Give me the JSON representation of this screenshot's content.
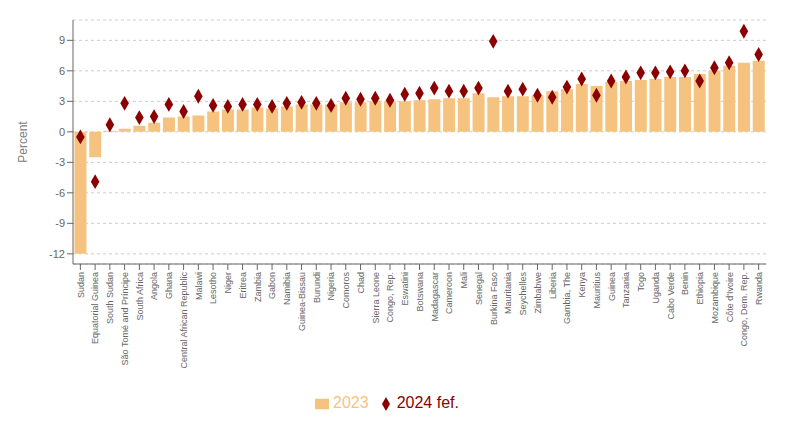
{
  "chart_data": {
    "type": "bar",
    "categories": [
      "Sudan",
      "Equatorial Guinea",
      "South Sudan",
      "São Tomé and Príncipe",
      "South Africa",
      "Angola",
      "Ghana",
      "Central African Republic",
      "Malawi",
      "Lesotho",
      "Niger",
      "Eritrea",
      "Zambia",
      "Gabon",
      "Namibia",
      "Guinea-Bissau",
      "Burundi",
      "Nigeria",
      "Comoros",
      "Chad",
      "Sierra Leone",
      "Congo, Rep.",
      "Eswatini",
      "Botswana",
      "Madagascar",
      "Cameroon",
      "Mali",
      "Senegal",
      "Burkina Faso",
      "Mauritania",
      "Seychelles",
      "Zimbabwe",
      "Liberia",
      "Gambia, The",
      "Kenya",
      "Mauritius",
      "Guinea",
      "Tanzania",
      "Togo",
      "Uganda",
      "Cabo Verde",
      "Benin",
      "Ethiopia",
      "Mozambique",
      "Côte d'Ivoire",
      "Congo, Dem. Rep.",
      "Rwanda"
    ],
    "series": [
      {
        "name": "2023",
        "type": "bar",
        "color": "#F5C37F",
        "values": [
          -12.0,
          -2.5,
          0.1,
          0.3,
          0.6,
          0.9,
          1.4,
          1.5,
          1.6,
          2.0,
          2.2,
          2.2,
          2.4,
          2.3,
          2.5,
          2.7,
          2.7,
          2.7,
          2.9,
          2.9,
          3.0,
          3.0,
          3.0,
          3.1,
          3.2,
          3.3,
          3.3,
          3.8,
          3.4,
          3.5,
          3.5,
          3.6,
          4.0,
          4.2,
          4.7,
          4.5,
          4.9,
          5.0,
          5.1,
          5.2,
          5.4,
          5.4,
          5.7,
          6.0,
          6.5,
          6.8,
          7.0
        ]
      },
      {
        "name": "2024 fef.",
        "type": "scatter",
        "marker": "diamond",
        "color": "#8B0000",
        "values": [
          -0.5,
          -4.9,
          0.7,
          2.8,
          1.4,
          1.5,
          2.7,
          2.0,
          3.5,
          2.6,
          2.5,
          2.7,
          2.7,
          2.5,
          2.8,
          2.9,
          2.8,
          2.6,
          3.3,
          3.2,
          3.3,
          3.1,
          3.7,
          3.8,
          4.3,
          4.0,
          4.0,
          4.3,
          8.9,
          4.0,
          4.2,
          3.6,
          3.4,
          4.4,
          5.2,
          3.6,
          5.0,
          5.4,
          5.8,
          5.8,
          5.9,
          6.0,
          5.0,
          6.3,
          6.8,
          9.9,
          7.6
        ]
      }
    ],
    "ylabel": "Percent",
    "ylim": [
      -13,
      11
    ],
    "yticks": [
      -12,
      -9,
      -6,
      -3,
      0,
      3,
      6,
      9
    ],
    "grid": true,
    "legend": "bottom"
  }
}
